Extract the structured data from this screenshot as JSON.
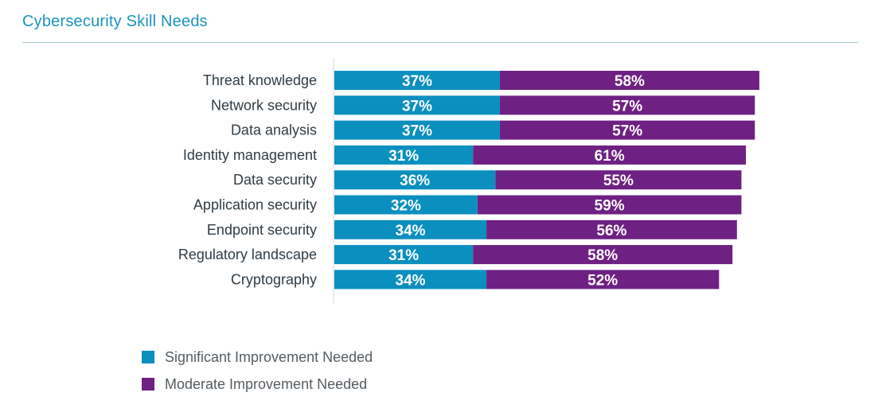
{
  "chart_data": {
    "type": "bar",
    "orientation": "horizontal",
    "stacked": true,
    "title": "Cybersecurity Skill Needs",
    "categories": [
      "Threat knowledge",
      "Network security",
      "Data analysis",
      "Identity management",
      "Data security",
      "Application security",
      "Endpoint security",
      "Regulatory landscape",
      "Cryptography"
    ],
    "series": [
      {
        "name": "Significant Improvement Needed",
        "color": "#0b8fbf",
        "values": [
          37,
          37,
          37,
          31,
          36,
          32,
          34,
          31,
          34
        ]
      },
      {
        "name": "Moderate Improvement Needed",
        "color": "#6e2182",
        "values": [
          58,
          57,
          57,
          61,
          55,
          59,
          56,
          58,
          52
        ]
      }
    ],
    "value_suffix": "%",
    "grid": false,
    "legend_position": "bottom-left"
  }
}
